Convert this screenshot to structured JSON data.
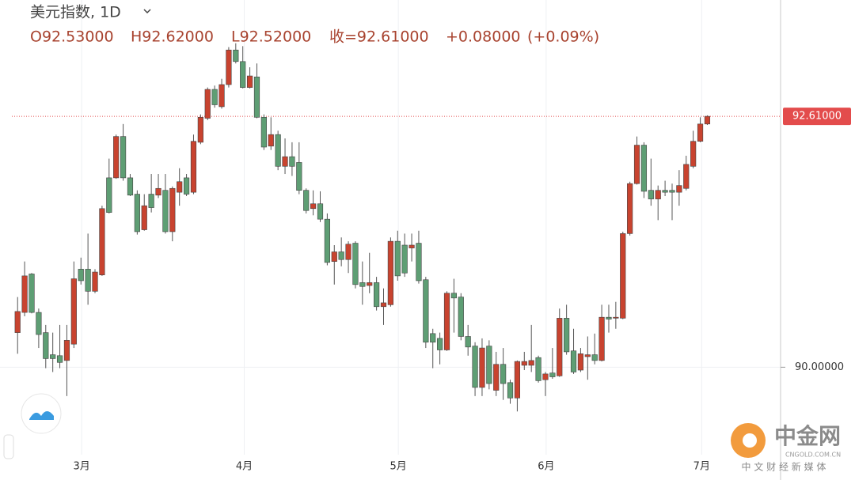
{
  "header": {
    "title": "美元指数, 1D",
    "open": "O92.53000",
    "high": "H92.62000",
    "low": "L92.52000",
    "close": "收=92.61000",
    "change": "+0.08000",
    "change_pct": "(+0.09%)"
  },
  "watermark": {
    "name": "中金网",
    "domain": "CNGOLD.COM.CN",
    "tagline": "中 文 财 经 新 媒 体"
  },
  "chart_data": {
    "type": "candlestick",
    "up_color": "#c8432f",
    "down_color": "#5e9e74",
    "xlim": [
      -2.5,
      108.3
    ],
    "xticks": [
      {
        "value": 9.1,
        "label": "3月"
      },
      {
        "value": 32.2,
        "label": "4月"
      },
      {
        "value": 54.1,
        "label": "5月"
      },
      {
        "value": 75.1,
        "label": "6月"
      },
      {
        "value": 97.2,
        "label": "7月"
      }
    ],
    "ylim": [
      89.09,
      93.82
    ],
    "yticks": [
      {
        "value": 90,
        "label": "90.00000"
      }
    ],
    "last_price": {
      "value": 92.61,
      "label": "92.61000",
      "color": "#e34c4c"
    },
    "grid": true,
    "open": [
      90.36,
      90.57,
      90.97,
      90.57,
      90.36,
      90.13,
      90.12,
      90.07,
      90.24,
      91.02,
      91.02,
      90.79,
      90.96,
      91.97,
      91.97,
      92.4,
      91.97,
      91.8,
      91.43,
      91.8,
      91.79,
      91.84,
      91.41,
      91.82,
      91.97,
      91.82,
      92.34,
      92.59,
      92.89,
      92.71,
      92.94,
      93.3,
      93.18,
      92.91,
      93.02,
      92.6,
      92.3,
      92.42,
      92.09,
      92.19,
      92.13,
      91.84,
      91.65,
      91.7,
      91.54,
      91.1,
      91.2,
      91.12,
      91.29,
      90.88,
      90.85,
      90.88,
      90.63,
      90.65,
      91.31,
      91.27,
      91.24,
      91.29,
      90.91,
      90.35,
      90.3,
      90.18,
      90.77,
      90.73,
      90.32,
      90.22,
      89.79,
      90.22,
      89.76,
      90.03,
      89.84,
      89.68,
      90.02,
      90.02,
      90.1,
      89.87,
      89.94,
      89.91,
      90.51,
      90.17,
      89.97,
      90.11,
      90.13,
      90.07,
      90.52,
      90.51,
      90.51,
      91.39,
      91.91,
      92.31,
      91.84,
      91.75,
      91.84,
      91.84,
      91.82,
      91.86,
      92.09,
      92.35,
      92.53
    ],
    "high": [
      90.73,
      91.1,
      90.98,
      90.61,
      90.44,
      90.36,
      90.44,
      90.44,
      91.1,
      91.14,
      91.39,
      91.02,
      91.68,
      92.17,
      92.42,
      92.53,
      92.01,
      91.84,
      91.8,
      92.01,
      92.01,
      92.01,
      91.88,
      92.07,
      92.01,
      92.42,
      92.63,
      92.91,
      92.93,
      93.0,
      93.33,
      93.37,
      93.34,
      93.12,
      93.16,
      92.63,
      92.6,
      92.46,
      92.38,
      92.34,
      92.34,
      91.86,
      91.84,
      91.83,
      91.6,
      91.27,
      91.35,
      91.31,
      91.31,
      91.1,
      91.19,
      90.94,
      90.82,
      91.35,
      91.42,
      91.39,
      91.39,
      91.42,
      90.94,
      90.4,
      90.36,
      90.79,
      90.92,
      90.77,
      90.44,
      90.26,
      90.3,
      90.28,
      90.16,
      90.2,
      89.87,
      90.07,
      90.16,
      90.44,
      90.12,
      89.95,
      90.2,
      90.61,
      90.65,
      90.4,
      90.2,
      90.32,
      90.35,
      90.65,
      90.65,
      90.68,
      91.41,
      91.93,
      92.4,
      92.34,
      92.17,
      91.89,
      91.94,
      91.91,
      92.05,
      92.2,
      92.46,
      92.6,
      92.62
    ],
    "low": [
      90.14,
      90.53,
      90.56,
      90.2,
      89.99,
      89.95,
      89.99,
      89.7,
      90.2,
      90.86,
      90.65,
      90.77,
      90.95,
      91.6,
      91.96,
      91.94,
      91.78,
      91.38,
      91.42,
      91.61,
      91.76,
      91.39,
      91.31,
      91.68,
      91.78,
      91.8,
      92.32,
      92.57,
      92.7,
      92.69,
      92.91,
      93.16,
      92.9,
      92.9,
      92.59,
      92.26,
      92.26,
      92.05,
      92.01,
      91.99,
      91.8,
      91.6,
      91.58,
      91.51,
      91.06,
      90.86,
      91.05,
      90.98,
      90.82,
      90.65,
      90.77,
      90.59,
      90.44,
      90.63,
      90.9,
      90.94,
      91.1,
      90.87,
      90.2,
      89.99,
      90.03,
      90.17,
      90.36,
      90.28,
      90.12,
      89.7,
      89.7,
      89.77,
      89.7,
      89.66,
      89.62,
      89.54,
      89.97,
      89.95,
      89.84,
      89.7,
      89.88,
      89.9,
      90.13,
      89.93,
      89.95,
      89.87,
      90.03,
      90.06,
      90.36,
      90.4,
      90.5,
      91.37,
      91.9,
      91.76,
      91.68,
      91.53,
      91.78,
      91.53,
      91.68,
      91.84,
      92.07,
      92.34,
      92.52
    ],
    "close": [
      90.58,
      90.95,
      90.57,
      90.34,
      90.09,
      90.09,
      90.05,
      90.28,
      90.92,
      90.9,
      90.79,
      90.99,
      91.65,
      91.61,
      92.4,
      91.97,
      91.79,
      91.41,
      91.68,
      91.66,
      91.86,
      91.41,
      91.86,
      91.93,
      91.8,
      92.35,
      92.6,
      92.89,
      92.73,
      92.94,
      93.3,
      93.18,
      92.91,
      93.03,
      92.6,
      92.29,
      92.42,
      92.09,
      92.19,
      92.09,
      91.84,
      91.63,
      91.7,
      91.54,
      91.09,
      91.2,
      91.12,
      91.28,
      90.86,
      90.84,
      90.88,
      90.63,
      90.67,
      91.31,
      90.95,
      90.98,
      91.27,
      90.9,
      90.26,
      90.26,
      90.18,
      90.77,
      90.72,
      90.32,
      90.21,
      89.79,
      90.2,
      89.83,
      90.03,
      89.83,
      89.68,
      90.06,
      90.06,
      90.07,
      89.86,
      89.93,
      89.9,
      90.51,
      90.16,
      89.95,
      90.14,
      90.13,
      90.07,
      90.52,
      90.5,
      90.52,
      91.39,
      91.91,
      92.31,
      91.83,
      91.75,
      91.84,
      91.82,
      91.82,
      91.89,
      92.11,
      92.35,
      92.53,
      92.61
    ]
  }
}
